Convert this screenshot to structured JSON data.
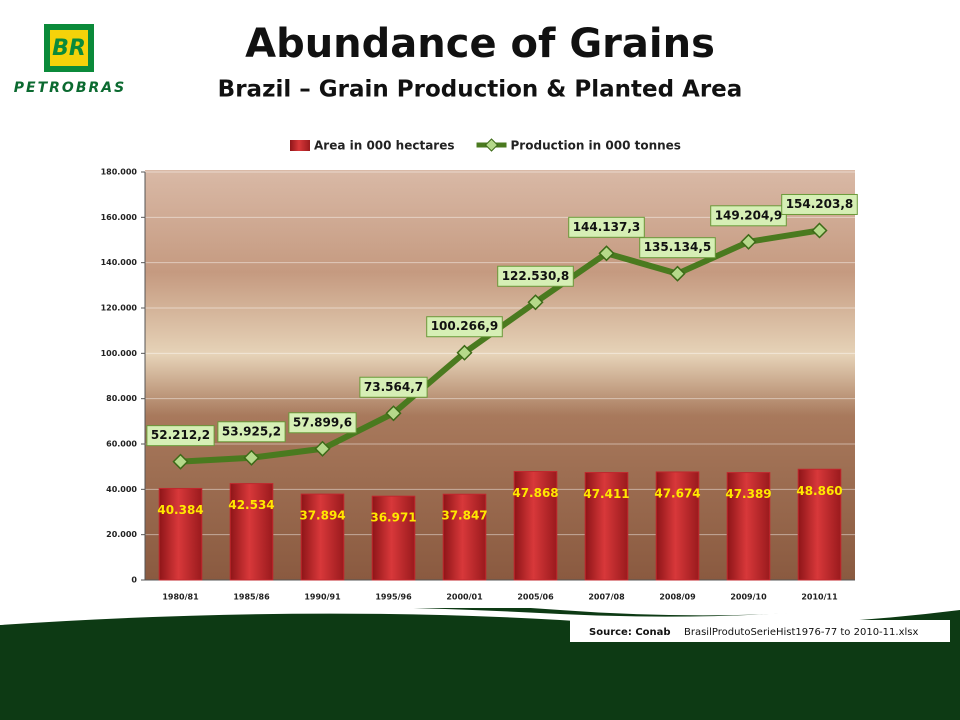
{
  "logo": {
    "mark": "BR",
    "name": "PETROBRAS"
  },
  "chart_data": {
    "type": "bar",
    "title": "Abundance of Grains",
    "subtitle": "Brazil – Grain Production & Planted Area",
    "source_label": "Source: Conab",
    "source_file": "BrasilProdutoSerieHist1976-77 to 2010-11.xlsx",
    "categories": [
      "1980/81",
      "1985/86",
      "1990/91",
      "1995/96",
      "2000/01",
      "2005/06",
      "2007/08",
      "2008/09",
      "2009/10",
      "2010/11"
    ],
    "series": [
      {
        "name": "Area in 000 hectares",
        "type": "bar",
        "color": "#c0272d",
        "values": [
          40384,
          42534,
          37894,
          36971,
          37847,
          47868,
          47411,
          47674,
          47389,
          48860
        ],
        "value_labels": [
          "40.384",
          "42.534",
          "37.894",
          "36.971",
          "37.847",
          "47.868",
          "47.411",
          "47.674",
          "47.389",
          "48.860"
        ]
      },
      {
        "name": "Production in 000 tonnes",
        "type": "line",
        "color": "#4a7a1f",
        "values": [
          52212.2,
          53925.2,
          57899.6,
          73564.7,
          100266.9,
          122530.8,
          144137.3,
          135134.5,
          149204.9,
          154203.8
        ],
        "value_labels": [
          "52.212,2",
          "53.925,2",
          "57.899,6",
          "73.564,7",
          "100.266,9",
          "122.530,8",
          "144.137,3",
          "135.134,5",
          "149.204,9",
          "154.203,8"
        ]
      }
    ],
    "ylim": [
      0,
      180000
    ],
    "yticks": [
      0,
      {
        "value": 20000,
        "label": "20.000"
      },
      {
        "value": 40000,
        "label": "40.000"
      },
      {
        "value": 60000,
        "label": "60.000"
      },
      {
        "value": 80000,
        "label": "80.000"
      },
      {
        "value": 100000,
        "label": "100.000"
      },
      {
        "value": 120000,
        "label": "120.000"
      },
      {
        "value": 140000,
        "label": "140.000"
      },
      {
        "value": 160000,
        "label": "160.000"
      },
      {
        "value": 180000,
        "label": "180.000"
      }
    ],
    "grid": true,
    "legend": "top"
  }
}
